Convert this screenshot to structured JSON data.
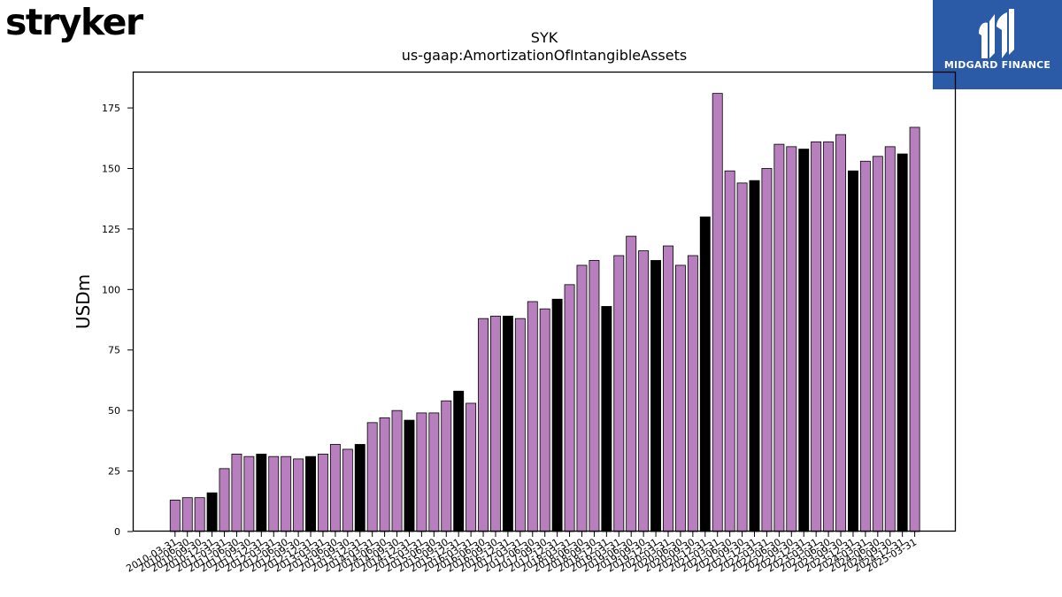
{
  "logos": {
    "left": "stryker",
    "right": "MIDGARD FINANCE",
    "right_icon": "midgard-m-icon"
  },
  "colors": {
    "bar_normal": "#b77fbd",
    "bar_annual": "#000000",
    "edge": "#000000",
    "brand_blue": "#2b5aa7"
  },
  "chart_data": {
    "type": "bar",
    "title": "SYK",
    "subtitle": "us-gaap:AmortizationOfIntangibleAssets",
    "xlabel": "",
    "ylabel": "USDm",
    "ylim": [
      0,
      190
    ],
    "yticks": [
      0,
      25,
      50,
      75,
      100,
      125,
      150,
      175
    ],
    "grid": false,
    "categories": [
      "2010-03-31",
      "2010-06-30",
      "2010-09-30",
      "2010-12-31",
      "2011-03-31",
      "2011-06-30",
      "2011-09-30",
      "2011-12-31",
      "2012-03-31",
      "2012-06-30",
      "2012-09-30",
      "2012-12-31",
      "2013-03-31",
      "2013-06-30",
      "2013-09-30",
      "2013-12-31",
      "2014-03-31",
      "2014-06-30",
      "2014-09-30",
      "2014-12-31",
      "2015-03-31",
      "2015-06-30",
      "2015-09-30",
      "2015-12-31",
      "2016-03-31",
      "2016-06-30",
      "2016-09-30",
      "2016-12-31",
      "2017-03-31",
      "2017-06-30",
      "2017-09-30",
      "2017-12-31",
      "2018-03-31",
      "2018-06-30",
      "2018-09-30",
      "2018-12-31",
      "2019-03-31",
      "2019-06-30",
      "2019-09-30",
      "2019-12-31",
      "2020-03-31",
      "2020-06-30",
      "2020-09-30",
      "2020-12-31",
      "2021-03-31",
      "2021-06-30",
      "2021-09-30",
      "2021-12-31",
      "2022-03-31",
      "2022-06-30",
      "2022-09-30",
      "2022-12-31",
      "2023-03-31",
      "2023-06-30",
      "2023-09-30",
      "2023-12-31",
      "2024-03-31",
      "2024-06-30",
      "2024-09-30",
      "2024-12-31",
      "2025-03-31"
    ],
    "visible_tick_labels": [
      "2010-03-31",
      "2010-06-30",
      "2010-09-30",
      "2010-12-31",
      "2011-03-31",
      "2011-06-30",
      "2011-09-30",
      "2011-12-31",
      "2012-03-31",
      "2012-06-30",
      "2012-09-30",
      "2012-12-31",
      "2013-03-31",
      "2013-06-30",
      "2013-09-30",
      "2013-12-31",
      "2014-03-31",
      "2014-06-30",
      "2014-09-30",
      "2014-12-31",
      "2015-03-31",
      "2015-06-30",
      "2015-09-30",
      "2015-12-31",
      "2016-03-31",
      "2016-06-30",
      "2016-09-30",
      "2016-12-31",
      "2017-03-31",
      "2017-06-30",
      "2017-09-30",
      "2017-12-31",
      "2018-03-31",
      "2018-06-30",
      "2018-09-30",
      "2018-12-31",
      "2019-03-31",
      "2019-06-30",
      "2019-09-30",
      "2019-12-31",
      "2020-03-31",
      "2020-06-30",
      "2020-09-30",
      "2020-12-31",
      "2021-03-31",
      "2021-06-30",
      "2021-09-30",
      "2021-12-31",
      "2022-03-31",
      "2022-06-30",
      "2022-09-30",
      "2022-12-31",
      "2023-03-31",
      "2023-06-30",
      "2023-09-30",
      "2023-12-31",
      "2024-03-31",
      "2024-06-30",
      "2024-09-30",
      "2024-12-31",
      "2025-03-31"
    ],
    "values": [
      13,
      14,
      14,
      16,
      26,
      32,
      31,
      32,
      31,
      31,
      30,
      31,
      32,
      36,
      34,
      36,
      45,
      47,
      50,
      46,
      49,
      49,
      54,
      58,
      53,
      88,
      89,
      89,
      88,
      95,
      92,
      96,
      102,
      110,
      112,
      93,
      114,
      122,
      116,
      112,
      118,
      110,
      114,
      130,
      181,
      149,
      144,
      145,
      150,
      160,
      159,
      158,
      161,
      161,
      164,
      149,
      153,
      155,
      159,
      156,
      167
    ],
    "annual_flags": [
      0,
      0,
      0,
      1,
      0,
      0,
      0,
      1,
      0,
      0,
      0,
      1,
      0,
      0,
      0,
      1,
      0,
      0,
      0,
      1,
      0,
      0,
      0,
      1,
      0,
      0,
      0,
      1,
      0,
      0,
      0,
      1,
      0,
      0,
      0,
      1,
      0,
      0,
      0,
      1,
      0,
      0,
      0,
      1,
      0,
      0,
      0,
      1,
      0,
      0,
      0,
      1,
      0,
      0,
      0,
      1,
      0,
      0,
      0,
      1,
      0
    ]
  }
}
